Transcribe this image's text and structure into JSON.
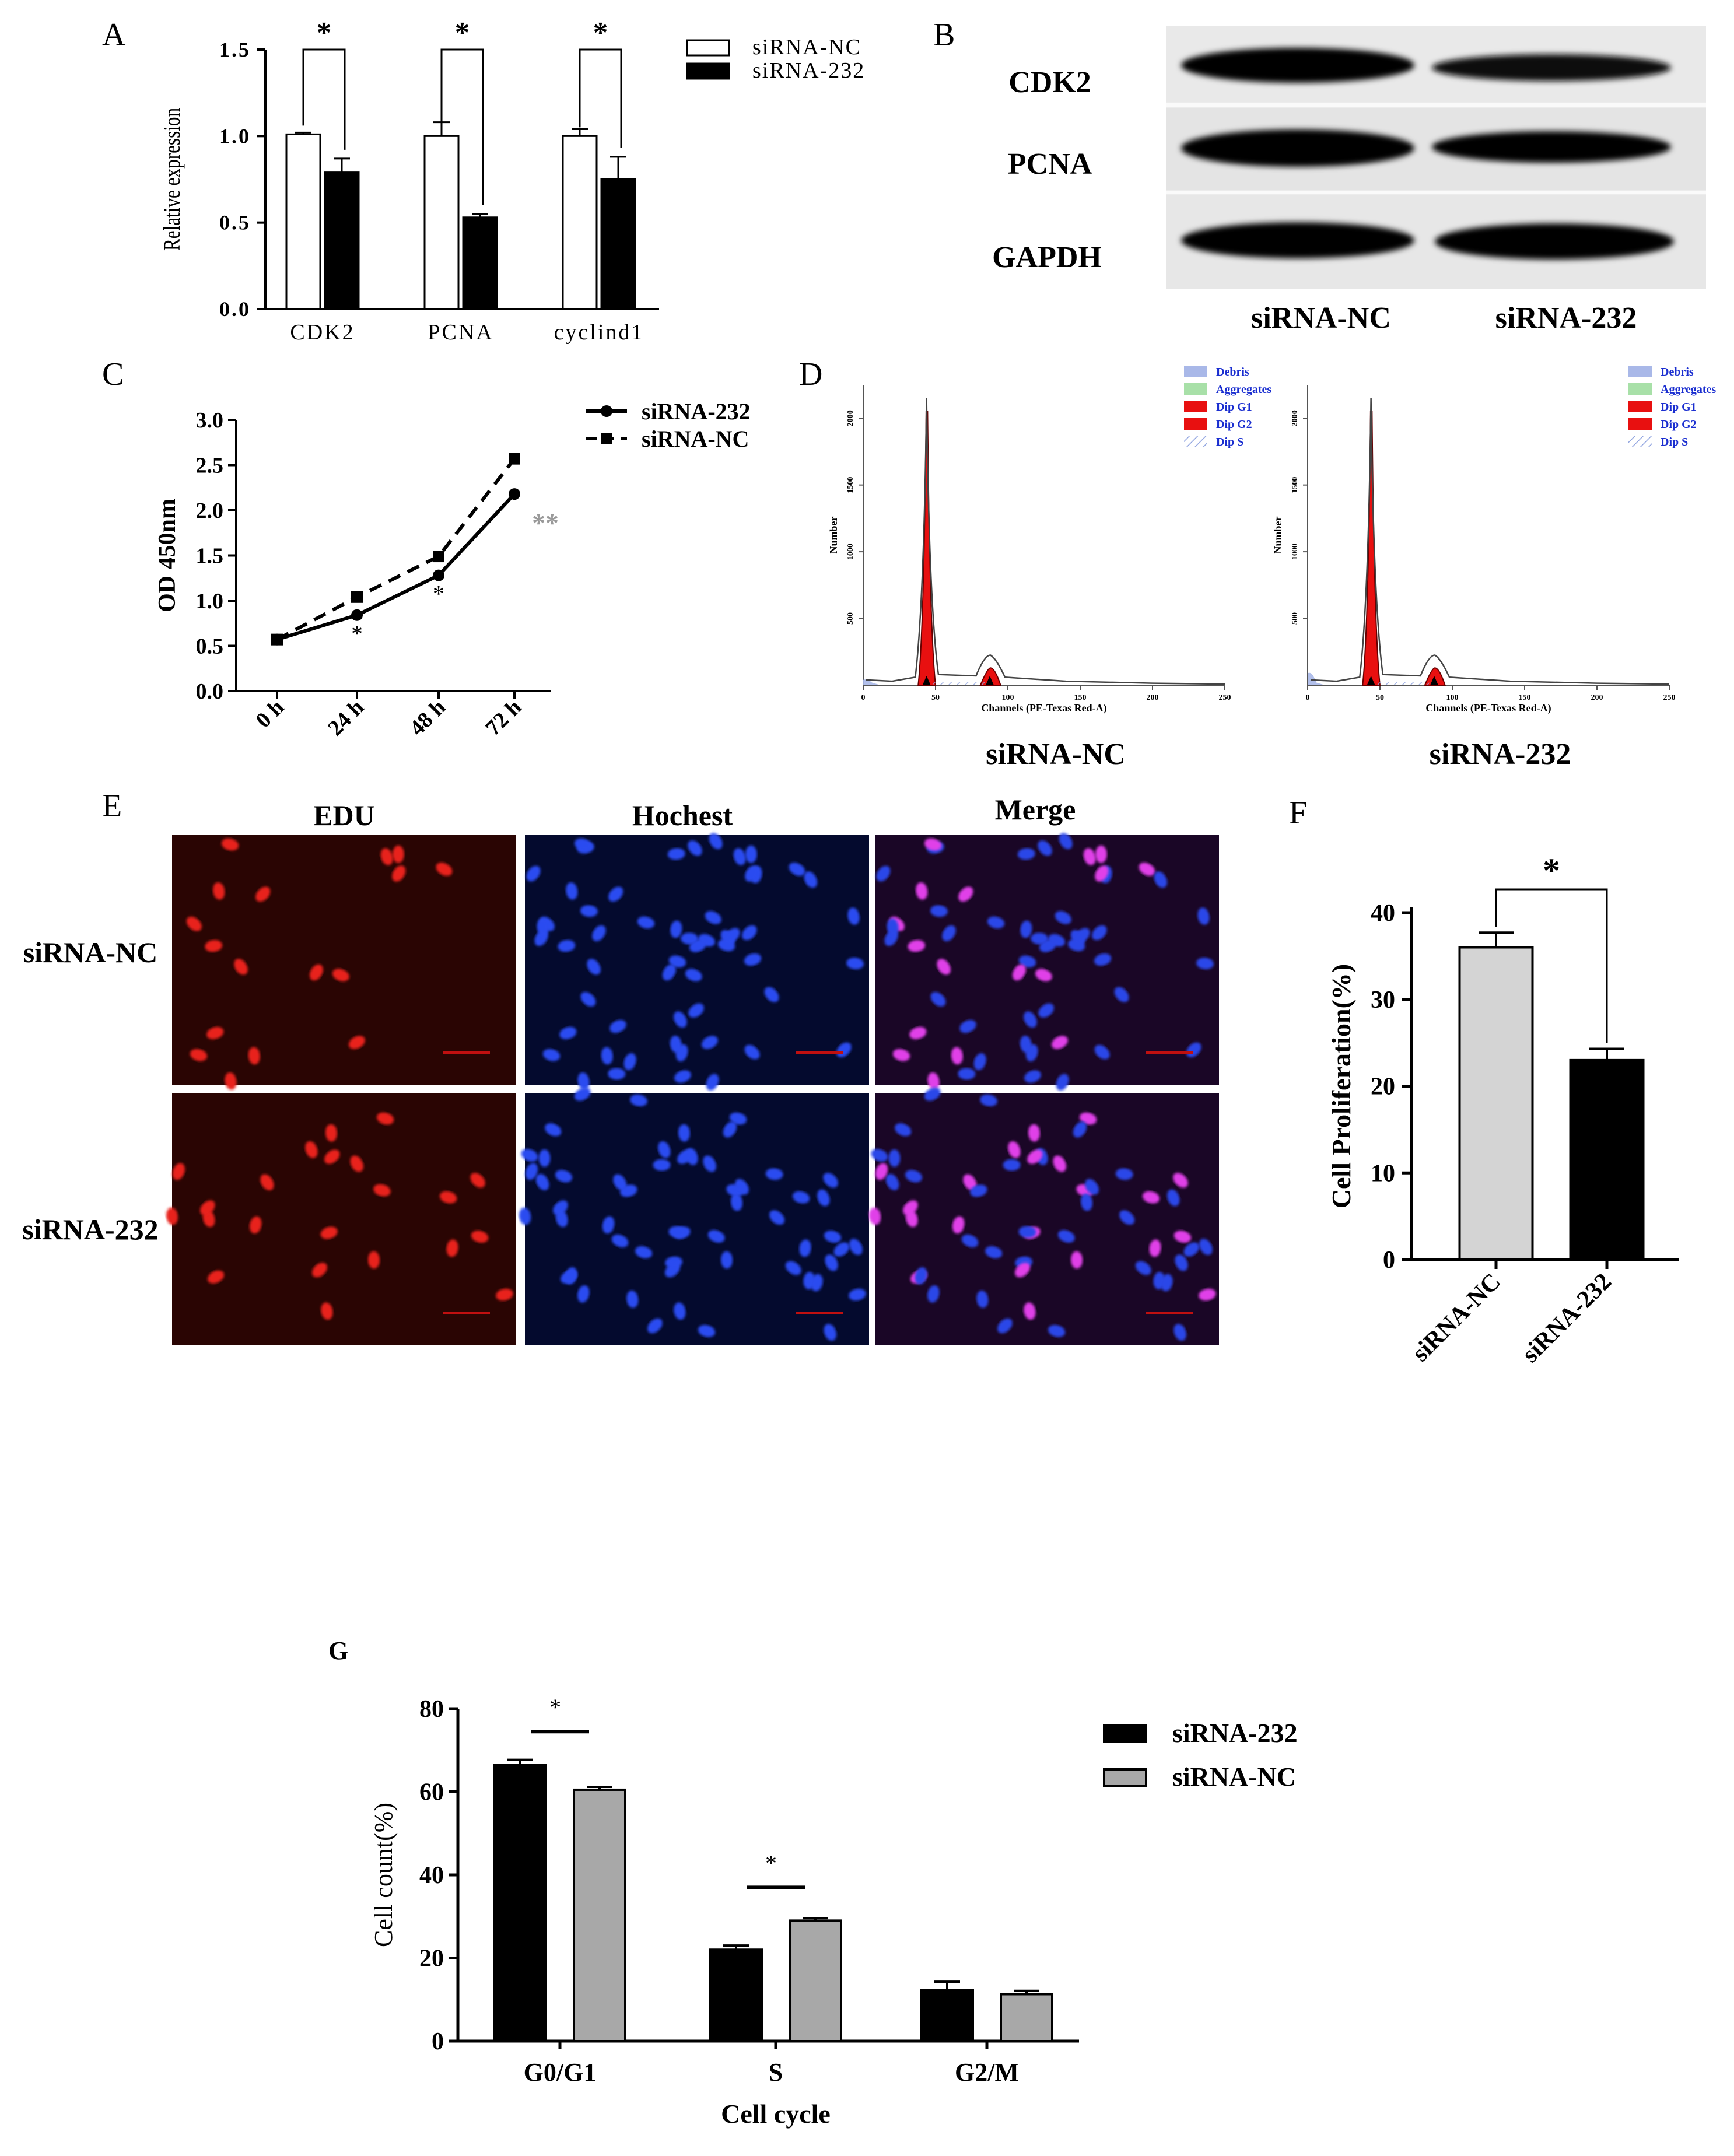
{
  "panels": {
    "A": {
      "letter": "A"
    },
    "B": {
      "letter": "B"
    },
    "C": {
      "letter": "C"
    },
    "D": {
      "letter": "D"
    },
    "E": {
      "letter": "E"
    },
    "F": {
      "letter": "F"
    },
    "G": {
      "letter": "G"
    }
  },
  "panel_b": {
    "rows": [
      "CDK2",
      "PCNA",
      "GAPDH"
    ],
    "lanes": [
      "siRNA-NC",
      "siRNA-232"
    ]
  },
  "panel_d": {
    "legend": [
      "Debris",
      "Aggregates",
      "Dip G1",
      "Dip G2",
      "Dip S"
    ],
    "legend_colors": [
      "#a9b8e8",
      "#a8e0a8",
      "#e81010",
      "#e81010",
      "#c7d2f0"
    ],
    "ylabel": "Number",
    "xlabel": "Channels (PE-Texas Red-A)",
    "yticks": [
      "500",
      "1000",
      "1500",
      "2000"
    ],
    "xticks": [
      "0",
      "50",
      "100",
      "150",
      "200",
      "250"
    ],
    "plots": [
      {
        "caption": "siRNA-NC"
      },
      {
        "caption": "siRNA-232"
      }
    ]
  },
  "panel_e": {
    "columns": [
      "EDU",
      "Hochest",
      "Merge"
    ],
    "rows": [
      "siRNA-NC",
      "siRNA-232"
    ],
    "colors": {
      "edu_bg": "#2a0503",
      "hoechst_bg": "#040a2e",
      "merge_bg": "#1a0626",
      "edu_nucleus": "#e8201a",
      "hoechst_nucleus": "#2a4cf0",
      "merge_nucleus": "#c840e0"
    }
  },
  "chart_data": [
    {
      "panel": "A",
      "type": "bar",
      "categories": [
        "CDK2",
        "PCNA",
        "cyclind1"
      ],
      "ylabel": "Relative expression",
      "ylim": [
        0,
        1.5
      ],
      "yticks": [
        "0.0",
        "0.5",
        "1.0",
        "1.5"
      ],
      "series": [
        {
          "name": "siRNA-NC",
          "values": [
            1.01,
            1.0,
            1.0
          ],
          "errors": [
            0.01,
            0.08,
            0.04
          ],
          "color": "#ffffff"
        },
        {
          "name": "siRNA-232",
          "values": [
            0.79,
            0.53,
            0.75
          ],
          "errors": [
            0.08,
            0.02,
            0.13
          ],
          "color": "#000000"
        }
      ],
      "significance": [
        "*",
        "*",
        "*"
      ],
      "legend": "top-right"
    },
    {
      "panel": "C",
      "type": "line",
      "x": [
        "0 h",
        "24 h",
        "48 h",
        "72 h"
      ],
      "ylabel": "OD 450nm",
      "ylim": [
        0,
        3.0
      ],
      "yticks": [
        "0.0",
        "0.5",
        "1.0",
        "1.5",
        "2.0",
        "2.5",
        "3.0"
      ],
      "series": [
        {
          "name": "siRNA-232",
          "values": [
            0.57,
            0.84,
            1.28,
            2.18
          ],
          "style": "solid"
        },
        {
          "name": "siRNA-NC",
          "values": [
            0.57,
            1.04,
            1.49,
            2.57
          ],
          "style": "dashed"
        }
      ],
      "annotations": [
        "*",
        "*",
        "**"
      ],
      "legend": "top-right"
    },
    {
      "panel": "F",
      "type": "bar",
      "categories": [
        "siRNA-NC",
        "siRNA-232"
      ],
      "ylabel": "Cell Proliferation(%)",
      "ylim": [
        0,
        40
      ],
      "yticks": [
        "0",
        "10",
        "20",
        "30",
        "40"
      ],
      "values": [
        36,
        23
      ],
      "errors": [
        1.7,
        1.3
      ],
      "colors": [
        "#d4d4d4",
        "#000000"
      ],
      "significance": "*"
    },
    {
      "panel": "G",
      "type": "bar",
      "categories": [
        "G0/G1",
        "S",
        "G2/M"
      ],
      "xlabel": "Cell cycle",
      "ylabel": "Cell count(%)",
      "ylim": [
        0,
        80
      ],
      "yticks": [
        "0",
        "20",
        "40",
        "60",
        "80"
      ],
      "series": [
        {
          "name": "siRNA-232",
          "values": [
            66.5,
            22,
            12.3
          ],
          "errors": [
            1.2,
            1.0,
            2.0
          ],
          "color": "#000000"
        },
        {
          "name": "siRNA-NC",
          "values": [
            60.5,
            29,
            11.3
          ],
          "errors": [
            0.7,
            0.6,
            0.8
          ],
          "color": "#a8a8a8"
        }
      ],
      "significance": [
        "*",
        "*",
        ""
      ],
      "legend": "top-right"
    }
  ]
}
